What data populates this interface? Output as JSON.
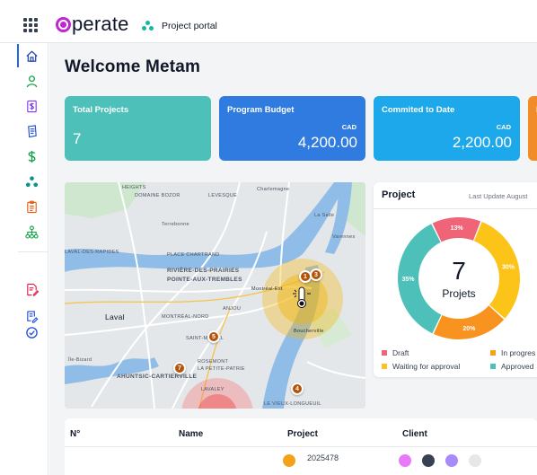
{
  "topbar": {
    "logo_text": "perate",
    "portal_label": "Project portal",
    "icons": [
      "apps-grid-icon",
      "logo-mark",
      "project-portal-icon"
    ]
  },
  "sidebar": {
    "items": [
      {
        "name": "home-icon",
        "active": true
      },
      {
        "name": "user-icon"
      },
      {
        "name": "invoice-icon"
      },
      {
        "name": "document-icon"
      },
      {
        "name": "dollar-icon"
      },
      {
        "name": "network-icon"
      },
      {
        "name": "clipboard-icon"
      },
      {
        "name": "hierarchy-icon"
      },
      {
        "name": "edit-document-icon"
      },
      {
        "name": "edit-list-icon"
      },
      {
        "name": "check-circle-icon"
      }
    ]
  },
  "main": {
    "welcome": "Welcome Metam",
    "kpis": [
      {
        "title": "Total Projects",
        "value": "7",
        "color": "#4dc1b9"
      },
      {
        "title": "Program Budget",
        "currency": "CAD",
        "value": "4,200.00",
        "color": "#2f7be0"
      },
      {
        "title": "Commited to Date",
        "currency": "CAD",
        "value": "2,200.00",
        "color": "#1ea8ec"
      },
      {
        "title": "P",
        "color": "#f28c28"
      }
    ],
    "map": {
      "labels": [
        {
          "text": "HEIGHTS"
        },
        {
          "text": "Charlemagne"
        },
        {
          "text": "DOMAINE BOZOR"
        },
        {
          "text": "LEVESQUE"
        },
        {
          "text": "Terrebonne"
        },
        {
          "text": "La Salle"
        },
        {
          "text": "Varennes"
        },
        {
          "text": "LAVAL-DES-RAPIDES"
        },
        {
          "text": "PLACE CHARTRAND"
        },
        {
          "text": "RIVIÈRE-DES-PRAIRIES"
        },
        {
          "text": "POINTE-AUX-TREMBLES"
        },
        {
          "text": "Montréal-Est"
        },
        {
          "text": "Laval"
        },
        {
          "text": "ANJOU"
        },
        {
          "text": "MONTRÉAL-NORD"
        },
        {
          "text": "SAINT-MICHEL"
        },
        {
          "text": "ROSEMONT"
        },
        {
          "text": "LA PETITE-PATRIE"
        },
        {
          "text": "AHUNTSIC-CARTIERVILLE"
        },
        {
          "text": "Boucherville"
        },
        {
          "text": "LE VIEUX-LONGUEUIL"
        },
        {
          "text": "Île-Bizard"
        },
        {
          "text": "LAVALEY"
        }
      ],
      "pins": [
        {
          "label": "1"
        },
        {
          "label": "3"
        },
        {
          "label": "5"
        },
        {
          "label": "7"
        },
        {
          "label": "4"
        }
      ]
    },
    "project_card": {
      "title": "Project",
      "last_update": "Last Update August",
      "center_value": "7",
      "center_label": "Projets",
      "legend": [
        {
          "label": "Draft",
          "color": "#f06478"
        },
        {
          "label": "In progres",
          "color": "#f5a21b"
        },
        {
          "label": "Waiting for approval",
          "color": "#fcc419"
        },
        {
          "label": "Approved",
          "color": "#4dc1b9"
        }
      ]
    },
    "table": {
      "columns": [
        "N°",
        "Name",
        "Project",
        "Client"
      ],
      "fragment": "2025478"
    }
  },
  "chart_data": {
    "type": "pie",
    "categories": [
      "Draft",
      "In progres",
      "Waiting for approval",
      "Approved"
    ],
    "values": [
      13,
      20,
      30,
      35
    ],
    "data_labels": [
      "13%",
      "20%",
      "30%",
      "35%"
    ],
    "colors": [
      "#f06478",
      "#f7931e",
      "#fcc419",
      "#4dc1b9"
    ],
    "title": "Project",
    "center": "7 Projets",
    "legend": "bottom"
  }
}
